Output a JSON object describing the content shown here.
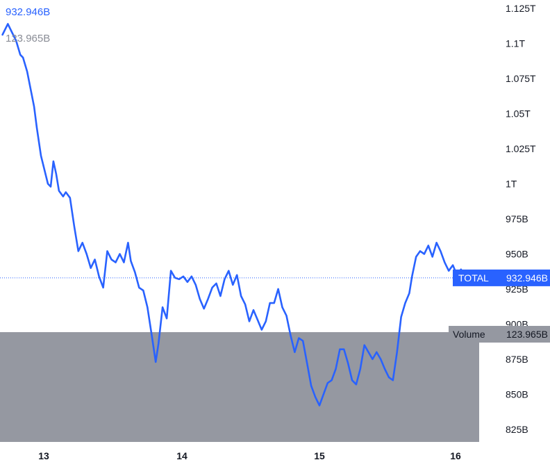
{
  "readouts": {
    "price_value": "932.946B",
    "volume_value": "123.965B"
  },
  "colors": {
    "price_line": "#2962ff",
    "volume_area": "#9598a1",
    "axis_text": "#131722",
    "label_text": "#ffffff",
    "volume_readout": "#8a8d96"
  },
  "chart_data": {
    "type": "line",
    "title": "",
    "xlabel": "",
    "ylabel": "",
    "ylim": [
      815,
      1135
    ],
    "y_unit": "B",
    "x_range": [
      12.7,
      16.2
    ],
    "x_ticks": [
      {
        "value": 13,
        "label": "13"
      },
      {
        "value": 14,
        "label": "14"
      },
      {
        "value": 15,
        "label": "15"
      },
      {
        "value": 16,
        "label": "16"
      }
    ],
    "y_ticks": [
      {
        "value": 1125,
        "label": "1.125T"
      },
      {
        "value": 1100,
        "label": "1.1T"
      },
      {
        "value": 1075,
        "label": "1.075T"
      },
      {
        "value": 1050,
        "label": "1.05T"
      },
      {
        "value": 1025,
        "label": "1.025T"
      },
      {
        "value": 1000,
        "label": "1T"
      },
      {
        "value": 975,
        "label": "975B"
      },
      {
        "value": 950,
        "label": "950B"
      },
      {
        "value": 925,
        "label": "925B"
      },
      {
        "value": 900,
        "label": "900B"
      },
      {
        "value": 875,
        "label": "875B"
      },
      {
        "value": 850,
        "label": "850B"
      },
      {
        "value": 825,
        "label": "825B"
      }
    ],
    "series": [
      {
        "name": "TOTAL",
        "last_value_label": "932.946B",
        "points": [
          [
            12.7,
            1106
          ],
          [
            12.74,
            1114
          ],
          [
            12.77,
            1108
          ],
          [
            12.8,
            1102
          ],
          [
            12.83,
            1092
          ],
          [
            12.85,
            1090
          ],
          [
            12.88,
            1080
          ],
          [
            12.91,
            1065
          ],
          [
            12.93,
            1055
          ],
          [
            12.95,
            1040
          ],
          [
            12.98,
            1020
          ],
          [
            13.0,
            1012
          ],
          [
            13.03,
            1000
          ],
          [
            13.05,
            998
          ],
          [
            13.07,
            1016
          ],
          [
            13.09,
            1007
          ],
          [
            13.11,
            995
          ],
          [
            13.14,
            991
          ],
          [
            13.16,
            994
          ],
          [
            13.19,
            990
          ],
          [
            13.22,
            970
          ],
          [
            13.25,
            952
          ],
          [
            13.28,
            958
          ],
          [
            13.31,
            950
          ],
          [
            13.34,
            940
          ],
          [
            13.37,
            946
          ],
          [
            13.4,
            934
          ],
          [
            13.43,
            926
          ],
          [
            13.46,
            952
          ],
          [
            13.49,
            946
          ],
          [
            13.52,
            944
          ],
          [
            13.55,
            950
          ],
          [
            13.58,
            944
          ],
          [
            13.61,
            958
          ],
          [
            13.63,
            945
          ],
          [
            13.66,
            937
          ],
          [
            13.69,
            926
          ],
          [
            13.72,
            924
          ],
          [
            13.75,
            912
          ],
          [
            13.78,
            893
          ],
          [
            13.81,
            873
          ],
          [
            13.83,
            886
          ],
          [
            13.86,
            912
          ],
          [
            13.89,
            904
          ],
          [
            13.92,
            938
          ],
          [
            13.95,
            933
          ],
          [
            13.98,
            932
          ],
          [
            14.01,
            934
          ],
          [
            14.04,
            930
          ],
          [
            14.07,
            934
          ],
          [
            14.1,
            928
          ],
          [
            14.13,
            918
          ],
          [
            14.16,
            911
          ],
          [
            14.19,
            918
          ],
          [
            14.22,
            926
          ],
          [
            14.25,
            929
          ],
          [
            14.28,
            920
          ],
          [
            14.31,
            932
          ],
          [
            14.34,
            938
          ],
          [
            14.37,
            928
          ],
          [
            14.4,
            935
          ],
          [
            14.43,
            920
          ],
          [
            14.46,
            914
          ],
          [
            14.49,
            902
          ],
          [
            14.52,
            910
          ],
          [
            14.55,
            903
          ],
          [
            14.58,
            896
          ],
          [
            14.61,
            902
          ],
          [
            14.64,
            915
          ],
          [
            14.67,
            915
          ],
          [
            14.7,
            925
          ],
          [
            14.73,
            912
          ],
          [
            14.76,
            906
          ],
          [
            14.79,
            892
          ],
          [
            14.82,
            880
          ],
          [
            14.85,
            890
          ],
          [
            14.88,
            888
          ],
          [
            14.91,
            872
          ],
          [
            14.94,
            856
          ],
          [
            14.97,
            848
          ],
          [
            15.0,
            842
          ],
          [
            15.03,
            850
          ],
          [
            15.06,
            858
          ],
          [
            15.09,
            860
          ],
          [
            15.12,
            868
          ],
          [
            15.15,
            882
          ],
          [
            15.18,
            882
          ],
          [
            15.21,
            872
          ],
          [
            15.24,
            860
          ],
          [
            15.27,
            857
          ],
          [
            15.3,
            868
          ],
          [
            15.33,
            885
          ],
          [
            15.36,
            880
          ],
          [
            15.39,
            875
          ],
          [
            15.42,
            880
          ],
          [
            15.45,
            875
          ],
          [
            15.48,
            868
          ],
          [
            15.51,
            862
          ],
          [
            15.54,
            860
          ],
          [
            15.57,
            880
          ],
          [
            15.6,
            905
          ],
          [
            15.63,
            915
          ],
          [
            15.66,
            922
          ],
          [
            15.68,
            934
          ],
          [
            15.71,
            948
          ],
          [
            15.74,
            952
          ],
          [
            15.77,
            950
          ],
          [
            15.8,
            956
          ],
          [
            15.83,
            948
          ],
          [
            15.86,
            958
          ],
          [
            15.89,
            952
          ],
          [
            15.92,
            944
          ],
          [
            15.95,
            938
          ],
          [
            15.98,
            942
          ],
          [
            16.01,
            935
          ],
          [
            16.04,
            939
          ],
          [
            16.07,
            933
          ],
          [
            16.1,
            932.946
          ]
        ]
      },
      {
        "name": "Volume",
        "last_value_label": "123.965B"
      }
    ],
    "grid": false,
    "legend": "none",
    "crosshair_value": 932.946
  }
}
